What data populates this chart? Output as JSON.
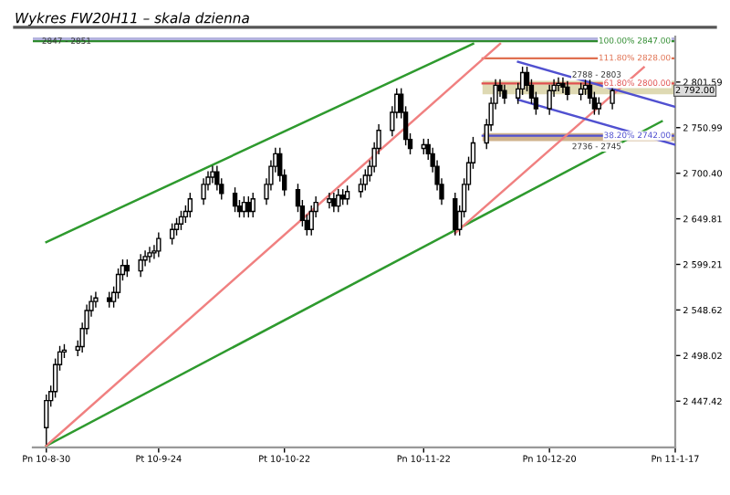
{
  "chart_data": {
    "type": "candlestick",
    "title": "Wykres FW20H11 – skala dzienna",
    "x": [
      "2010-08-30",
      "2010-08-31",
      "2010-09-01",
      "2010-09-02",
      "2010-09-03",
      "2010-09-06",
      "2010-09-07",
      "2010-09-08",
      "2010-09-09",
      "2010-09-10",
      "2010-09-13",
      "2010-09-14",
      "2010-09-15",
      "2010-09-16",
      "2010-09-17",
      "2010-09-20",
      "2010-09-21",
      "2010-09-22",
      "2010-09-23",
      "2010-09-24",
      "2010-09-27",
      "2010-09-28",
      "2010-09-29",
      "2010-09-30",
      "2010-10-01",
      "2010-10-04",
      "2010-10-05",
      "2010-10-06",
      "2010-10-07",
      "2010-10-08",
      "2010-10-11",
      "2010-10-12",
      "2010-10-13",
      "2010-10-14",
      "2010-10-15",
      "2010-10-18",
      "2010-10-19",
      "2010-10-20",
      "2010-10-21",
      "2010-10-22",
      "2010-10-25",
      "2010-10-26",
      "2010-10-27",
      "2010-10-28",
      "2010-10-29",
      "2010-11-01",
      "2010-11-02",
      "2010-11-03",
      "2010-11-04",
      "2010-11-05",
      "2010-11-08",
      "2010-11-09",
      "2010-11-10",
      "2010-11-11",
      "2010-11-12",
      "2010-11-15",
      "2010-11-16",
      "2010-11-17",
      "2010-11-18",
      "2010-11-19",
      "2010-11-22",
      "2010-11-23",
      "2010-11-24",
      "2010-11-25",
      "2010-11-26",
      "2010-11-29",
      "2010-11-30",
      "2010-12-01",
      "2010-12-02",
      "2010-12-03",
      "2010-12-06",
      "2010-12-07",
      "2010-12-08",
      "2010-12-09",
      "2010-12-10",
      "2010-12-13",
      "2010-12-14",
      "2010-12-15",
      "2010-12-16",
      "2010-12-17",
      "2010-12-20",
      "2010-12-21",
      "2010-12-22",
      "2010-12-23",
      "2010-12-24",
      "2010-12-27",
      "2010-12-28",
      "2010-12-29",
      "2010-12-30",
      "2010-12-31",
      "2011-01-03"
    ],
    "ohlc": [
      [
        2418,
        2454,
        2400,
        2448
      ],
      [
        2448,
        2464,
        2442,
        2458
      ],
      [
        2458,
        2494,
        2452,
        2488
      ],
      [
        2488,
        2508,
        2482,
        2502
      ],
      [
        2502,
        2510,
        2496,
        2504
      ],
      [
        2504,
        2514,
        2498,
        2508
      ],
      [
        2508,
        2534,
        2502,
        2528
      ],
      [
        2528,
        2554,
        2522,
        2548
      ],
      [
        2548,
        2564,
        2542,
        2558
      ],
      [
        2558,
        2568,
        2552,
        2562
      ],
      [
        2562,
        2568,
        2552,
        2558
      ],
      [
        2558,
        2574,
        2552,
        2568
      ],
      [
        2568,
        2594,
        2562,
        2588
      ],
      [
        2588,
        2604,
        2582,
        2598
      ],
      [
        2598,
        2604,
        2586,
        2592
      ],
      [
        2592,
        2610,
        2586,
        2604
      ],
      [
        2604,
        2614,
        2598,
        2608
      ],
      [
        2608,
        2618,
        2602,
        2612
      ],
      [
        2612,
        2620,
        2606,
        2614
      ],
      [
        2614,
        2634,
        2608,
        2628
      ],
      [
        2628,
        2644,
        2622,
        2638
      ],
      [
        2638,
        2650,
        2632,
        2644
      ],
      [
        2644,
        2658,
        2638,
        2652
      ],
      [
        2652,
        2664,
        2646,
        2658
      ],
      [
        2658,
        2678,
        2652,
        2672
      ],
      [
        2672,
        2694,
        2666,
        2688
      ],
      [
        2688,
        2702,
        2682,
        2696
      ],
      [
        2696,
        2708,
        2690,
        2702
      ],
      [
        2702,
        2708,
        2682,
        2688
      ],
      [
        2688,
        2694,
        2672,
        2678
      ],
      [
        2678,
        2684,
        2658,
        2664
      ],
      [
        2664,
        2670,
        2652,
        2658
      ],
      [
        2658,
        2674,
        2652,
        2668
      ],
      [
        2668,
        2674,
        2652,
        2658
      ],
      [
        2658,
        2678,
        2652,
        2672
      ],
      [
        2672,
        2694,
        2666,
        2688
      ],
      [
        2688,
        2714,
        2682,
        2708
      ],
      [
        2708,
        2728,
        2702,
        2722
      ],
      [
        2722,
        2728,
        2692,
        2698
      ],
      [
        2698,
        2704,
        2676,
        2682
      ],
      [
        2682,
        2688,
        2658,
        2664
      ],
      [
        2664,
        2670,
        2642,
        2648
      ],
      [
        2648,
        2654,
        2632,
        2638
      ],
      [
        2638,
        2664,
        2632,
        2658
      ],
      [
        2658,
        2674,
        2652,
        2668
      ],
      [
        2668,
        2678,
        2662,
        2672
      ],
      [
        2672,
        2678,
        2658,
        2664
      ],
      [
        2664,
        2682,
        2658,
        2676
      ],
      [
        2676,
        2682,
        2666,
        2672
      ],
      [
        2672,
        2686,
        2666,
        2680
      ],
      [
        2680,
        2694,
        2674,
        2688
      ],
      [
        2688,
        2704,
        2682,
        2698
      ],
      [
        2698,
        2714,
        2692,
        2708
      ],
      [
        2708,
        2734,
        2702,
        2728
      ],
      [
        2728,
        2754,
        2722,
        2748
      ],
      [
        2748,
        2774,
        2742,
        2768
      ],
      [
        2768,
        2794,
        2762,
        2788
      ],
      [
        2788,
        2794,
        2762,
        2768
      ],
      [
        2768,
        2774,
        2732,
        2738
      ],
      [
        2738,
        2744,
        2722,
        2728
      ],
      [
        2728,
        2738,
        2722,
        2732
      ],
      [
        2732,
        2738,
        2716,
        2722
      ],
      [
        2722,
        2728,
        2702,
        2708
      ],
      [
        2708,
        2714,
        2682,
        2688
      ],
      [
        2688,
        2694,
        2666,
        2672
      ],
      [
        2672,
        2678,
        2632,
        2638
      ],
      [
        2638,
        2664,
        2632,
        2658
      ],
      [
        2658,
        2694,
        2652,
        2688
      ],
      [
        2688,
        2718,
        2682,
        2712
      ],
      [
        2712,
        2740,
        2706,
        2734
      ],
      [
        2734,
        2760,
        2728,
        2754
      ],
      [
        2754,
        2784,
        2748,
        2778
      ],
      [
        2778,
        2804,
        2772,
        2798
      ],
      [
        2798,
        2804,
        2786,
        2792
      ],
      [
        2792,
        2798,
        2778,
        2784
      ],
      [
        2784,
        2800,
        2778,
        2794
      ],
      [
        2794,
        2818,
        2788,
        2812
      ],
      [
        2812,
        2818,
        2792,
        2798
      ],
      [
        2798,
        2804,
        2778,
        2784
      ],
      [
        2784,
        2790,
        2766,
        2772
      ],
      [
        2772,
        2798,
        2766,
        2792
      ],
      [
        2792,
        2804,
        2786,
        2798
      ],
      [
        2798,
        2806,
        2792,
        2800
      ],
      [
        2800,
        2806,
        2790,
        2796
      ],
      [
        2796,
        2802,
        2782,
        2788
      ],
      [
        2788,
        2800,
        2782,
        2794
      ],
      [
        2794,
        2804,
        2788,
        2798
      ],
      [
        2798,
        2804,
        2778,
        2784
      ],
      [
        2784,
        2790,
        2766,
        2772
      ],
      [
        2772,
        2784,
        2766,
        2778
      ],
      [
        2778,
        2798,
        2772,
        2792
      ]
    ],
    "series": [
      {
        "type": "line",
        "color": "#2e9a2e",
        "x": [
          "2010-08-30",
          "2010-12-03"
        ],
        "values": [
          2624,
          2844
        ]
      },
      {
        "type": "line",
        "color": "#2e9a2e",
        "x": [
          "2010-08-30",
          "2011-01-14"
        ],
        "values": [
          2398,
          2758
        ]
      },
      {
        "type": "line",
        "color": "#f08080",
        "x": [
          "2010-08-30",
          "2010-12-09"
        ],
        "values": [
          2398,
          2844
        ]
      },
      {
        "type": "line",
        "color": "#f08080",
        "x": [
          "2010-11-29",
          "2011-01-10"
        ],
        "values": [
          2634,
          2818
        ]
      },
      {
        "type": "line",
        "color": "#5050d0",
        "x": [
          "2010-12-13",
          "2011-01-17"
        ],
        "values": [
          2824,
          2774
        ]
      },
      {
        "type": "line",
        "color": "#5050d0",
        "x": [
          "2010-12-13",
          "2011-01-17"
        ],
        "values": [
          2782,
          2732
        ]
      }
    ],
    "bands": [
      {
        "axis": "y",
        "from": 2847,
        "to": 2851,
        "label": "2847 - 2851",
        "color": "#8080c8"
      },
      {
        "axis": "y",
        "from": 2788,
        "to": 2803,
        "label": "2788 - 2803",
        "color": "#c8c080"
      },
      {
        "axis": "y",
        "from": 2736,
        "to": 2745,
        "label": "2736 - 2745",
        "color": "#b08040"
      }
    ],
    "ref_lines": [
      {
        "axis": "y",
        "value": 2847,
        "label": "100.00% 2847.00",
        "color": "#2e8b2e"
      },
      {
        "axis": "y",
        "value": 2828,
        "label": "111.80% 2828.00",
        "color": "#e07050"
      },
      {
        "axis": "y",
        "value": 2800,
        "label": "61.80% 2800.00",
        "color": "#e05050"
      },
      {
        "axis": "y",
        "value": 2742,
        "label": "38.20% 2742.00",
        "color": "#5050d0"
      }
    ],
    "annotations": [
      {
        "text": "2 792.00",
        "x": "2011-01-17",
        "y": 2792
      }
    ],
    "xlim": [
      "2010-08-27",
      "2011-01-17"
    ],
    "xticks": [
      {
        "value": "2010-08-30",
        "label": "Pn 10-8-30"
      },
      {
        "value": "2010-09-24",
        "label": "Pt 10-9-24"
      },
      {
        "value": "2010-10-22",
        "label": "Pt 10-10-22"
      },
      {
        "value": "2010-11-22",
        "label": "Pn 10-11-22"
      },
      {
        "value": "2010-12-20",
        "label": "Pn 10-12-20"
      },
      {
        "value": "2011-01-17",
        "label": "Pn 11-1-17"
      }
    ],
    "ylim": [
      2396,
      2852
    ],
    "yticks": [
      {
        "value": 2447.42,
        "label": "2 447.42"
      },
      {
        "value": 2498.02,
        "label": "2 498.02"
      },
      {
        "value": 2548.62,
        "label": "2 548.62"
      },
      {
        "value": 2599.21,
        "label": "2 599.21"
      },
      {
        "value": 2649.81,
        "label": "2 649.81"
      },
      {
        "value": 2700.4,
        "label": "2 700.40"
      },
      {
        "value": 2750.99,
        "label": "2 750.99"
      },
      {
        "value": 2801.59,
        "label": "2 801.59"
      }
    ],
    "grid": false
  }
}
